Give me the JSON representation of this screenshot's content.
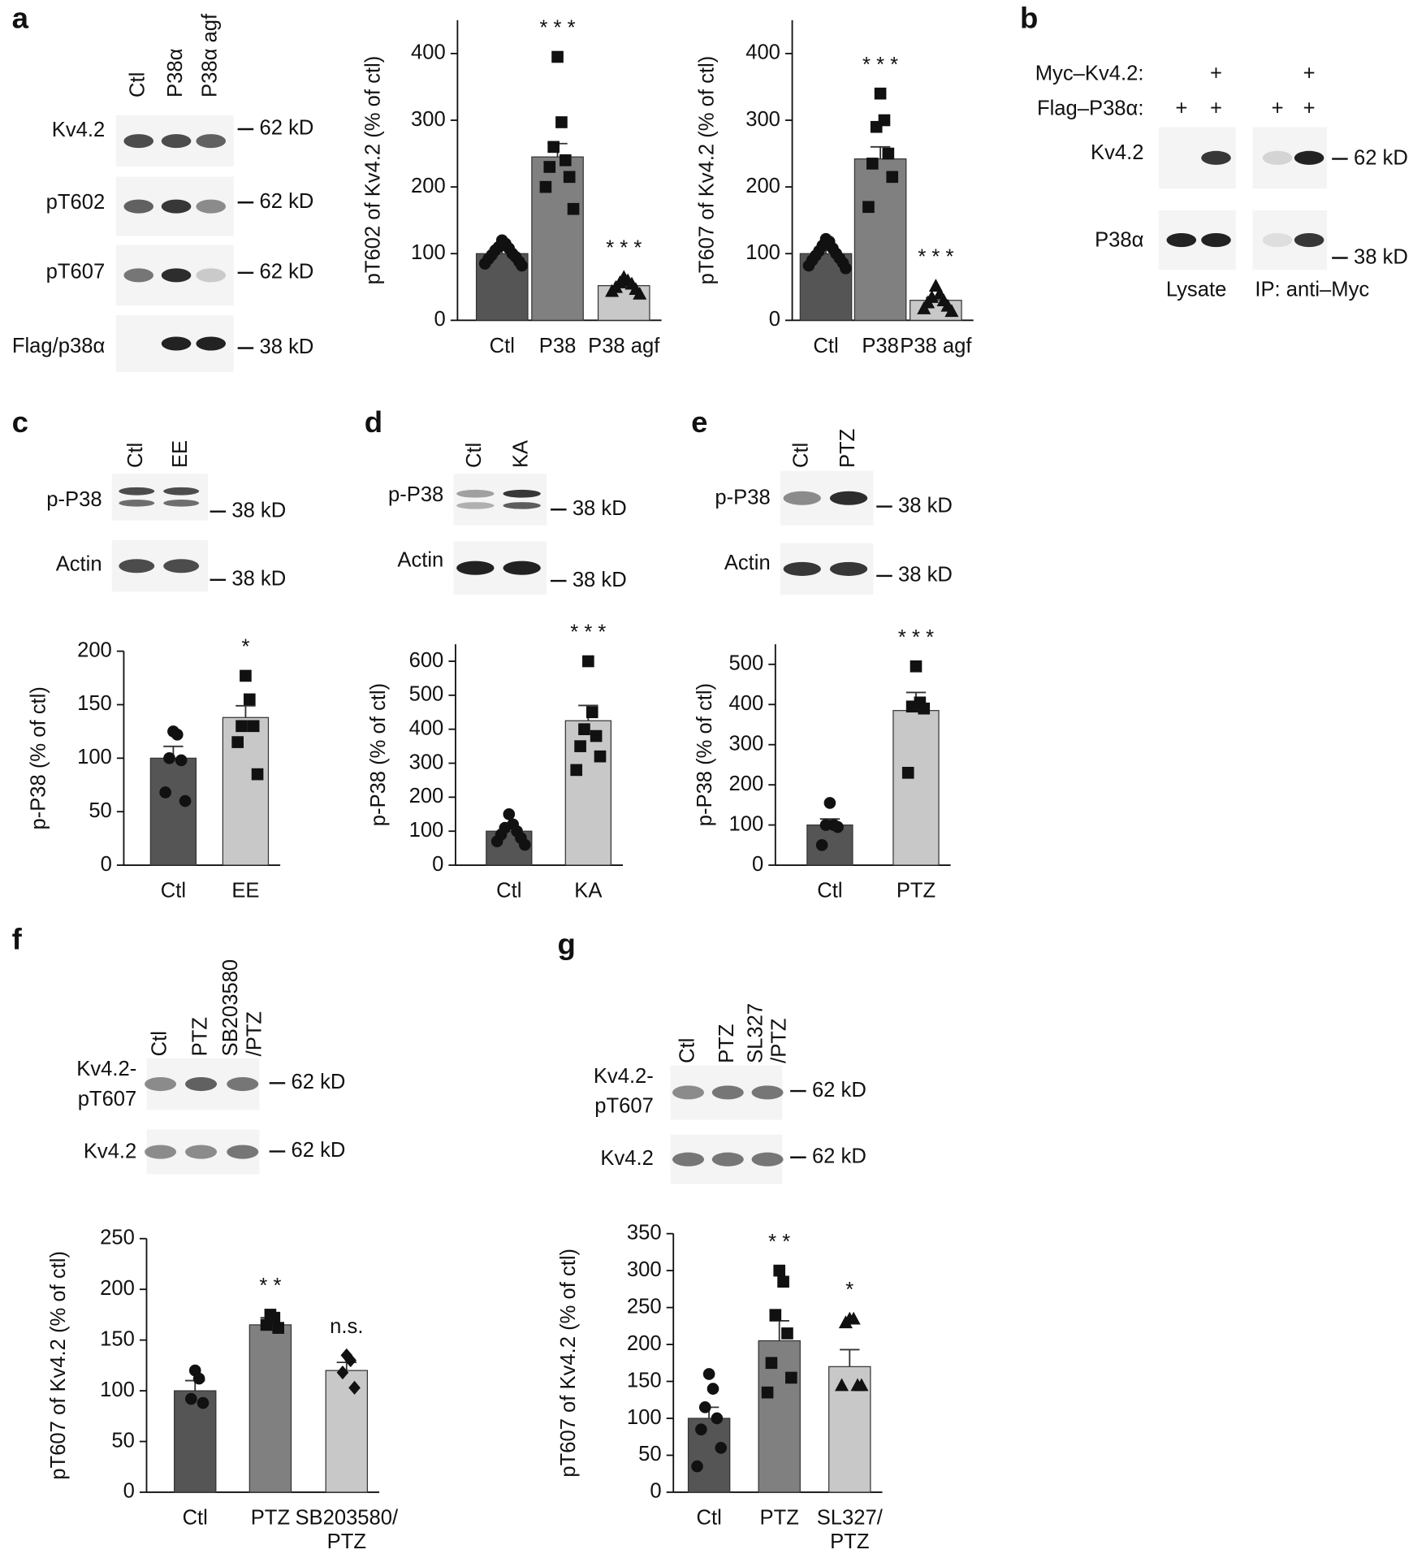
{
  "panel_labels": [
    "a",
    "b",
    "c",
    "d",
    "e",
    "f",
    "g"
  ],
  "blots": [
    {
      "lanes": [
        [
          "Ctl"
        ],
        [
          "P38α"
        ],
        [
          "P38α agf"
        ]
      ],
      "rows": [
        [
          "Kv4.2"
        ],
        [
          "pT602"
        ],
        [
          "pT607"
        ],
        [
          "Flag/p38α"
        ]
      ],
      "markers": [
        "62 kD",
        "62 kD",
        "62 kD",
        "38 kD"
      ]
    },
    {
      "conditions": [
        {
          "label": "Myc–Kv4.2:",
          "marks": [
            null,
            "+",
            null,
            "+"
          ]
        },
        {
          "label": "Flag–P38α:",
          "marks": [
            "+",
            "+",
            "+",
            "+"
          ]
        }
      ],
      "rows": [
        [
          "Kv4.2"
        ],
        [
          "P38α"
        ]
      ],
      "markers": [
        "62 kD",
        "38 kD"
      ],
      "groups": [
        "Lysate",
        "IP: anti–Myc"
      ]
    },
    {
      "lanes": [
        [
          "Ctl"
        ],
        [
          "EE"
        ]
      ],
      "rows": [
        [
          "p-P38"
        ],
        [
          "Actin"
        ]
      ],
      "markers": [
        "38 kD",
        "38 kD"
      ]
    },
    {
      "lanes": [
        [
          "Ctl"
        ],
        [
          "KA"
        ]
      ],
      "rows": [
        [
          "p-P38"
        ],
        [
          "Actin"
        ]
      ],
      "markers": [
        "38 kD",
        "38 kD"
      ]
    },
    {
      "lanes": [
        [
          "Ctl"
        ],
        [
          "PTZ"
        ]
      ],
      "rows": [
        [
          "p-P38"
        ],
        [
          "Actin"
        ]
      ],
      "markers": [
        "38 kD",
        "38 kD"
      ]
    },
    {
      "lanes": [
        [
          "Ctl"
        ],
        [
          "PTZ"
        ],
        [
          "SB203580",
          "/PTZ"
        ]
      ],
      "rows": [
        [
          "Kv4.2-",
          "pT607"
        ],
        [
          "Kv4.2"
        ]
      ],
      "markers": [
        "62 kD",
        "62 kD"
      ]
    },
    {
      "lanes": [
        [
          "Ctl"
        ],
        [
          "PTZ"
        ],
        [
          "SL327",
          "/PTZ"
        ]
      ],
      "rows": [
        [
          "Kv4.2-",
          "pT607"
        ],
        [
          "Kv4.2"
        ]
      ],
      "markers": [
        "62 kD",
        "62 kD"
      ]
    }
  ],
  "chart_data": [
    {
      "type": "bar",
      "ylabel": "pT602 of Kv4.2 (% of ctl)",
      "categories": [
        [
          "Ctl"
        ],
        [
          "P38"
        ],
        [
          "P38 agf"
        ]
      ],
      "values": [
        100,
        245,
        52
      ],
      "errors": [
        5,
        20,
        4
      ],
      "colors": [
        "#555555",
        "#808080",
        "#c8c8c8"
      ],
      "markers": [
        "circle",
        "square",
        "triangle"
      ],
      "points": [
        [
          120,
          115,
          110,
          108,
          105,
          100,
          98,
          95,
          92,
          88,
          85,
          82
        ],
        [
          395,
          297,
          260,
          240,
          230,
          215,
          200,
          167
        ],
        [
          65,
          60,
          57,
          55,
          50,
          47,
          44,
          40
        ]
      ],
      "annotations": [
        null,
        "* * *",
        "* * *"
      ],
      "ylim": [
        0,
        450
      ],
      "yticks": [
        0,
        100,
        200,
        300,
        400
      ]
    },
    {
      "type": "bar",
      "ylabel": "pT607 of Kv4.2 (% of ctl)",
      "categories": [
        [
          "Ctl"
        ],
        [
          "P38"
        ],
        [
          "P38 agf"
        ]
      ],
      "values": [
        100,
        242,
        30
      ],
      "errors": [
        5,
        18,
        4
      ],
      "colors": [
        "#555555",
        "#808080",
        "#c8c8c8"
      ],
      "markers": [
        "circle",
        "square",
        "triangle"
      ],
      "points": [
        [
          122,
          118,
          112,
          108,
          104,
          100,
          97,
          93,
          90,
          86,
          82,
          78
        ],
        [
          340,
          300,
          290,
          250,
          235,
          215,
          170
        ],
        [
          52,
          40,
          35,
          30,
          27,
          22,
          18,
          14
        ]
      ],
      "annotations": [
        null,
        "* * *",
        "* * *"
      ],
      "ylim": [
        0,
        450
      ],
      "yticks": [
        0,
        100,
        200,
        300,
        400
      ]
    },
    {
      "type": "bar",
      "ylabel": "p-P38 (% of ctl)",
      "categories": [
        [
          "Ctl"
        ],
        [
          "EE"
        ]
      ],
      "values": [
        100,
        138
      ],
      "errors": [
        11,
        11
      ],
      "colors": [
        "#555555",
        "#c8c8c8"
      ],
      "markers": [
        "circle",
        "square"
      ],
      "points": [
        [
          125,
          122,
          100,
          98,
          68,
          60
        ],
        [
          177,
          155,
          130,
          130,
          115,
          85
        ]
      ],
      "annotations": [
        null,
        "*"
      ],
      "ylim": [
        0,
        200
      ],
      "yticks": [
        0,
        50,
        100,
        150,
        200
      ]
    },
    {
      "type": "bar",
      "ylabel": "p-P38 (% of ctl)",
      "categories": [
        [
          "Ctl"
        ],
        [
          "KA"
        ]
      ],
      "values": [
        100,
        425
      ],
      "errors": [
        12,
        45
      ],
      "colors": [
        "#555555",
        "#c8c8c8"
      ],
      "markers": [
        "circle",
        "square"
      ],
      "points": [
        [
          150,
          120,
          110,
          100,
          90,
          80,
          70,
          60
        ],
        [
          600,
          450,
          400,
          380,
          350,
          320,
          280
        ]
      ],
      "annotations": [
        null,
        "* * *"
      ],
      "ylim": [
        0,
        650
      ],
      "yticks": [
        0,
        100,
        200,
        300,
        400,
        500,
        600
      ]
    },
    {
      "type": "bar",
      "ylabel": "p-P38 (% of ctl)",
      "categories": [
        [
          "Ctl"
        ],
        [
          "PTZ"
        ]
      ],
      "values": [
        100,
        385
      ],
      "errors": [
        15,
        45
      ],
      "colors": [
        "#555555",
        "#c8c8c8"
      ],
      "markers": [
        "circle",
        "square"
      ],
      "points": [
        [
          155,
          100,
          100,
          95,
          50
        ],
        [
          495,
          405,
          395,
          390,
          230
        ]
      ],
      "annotations": [
        null,
        "* * *"
      ],
      "ylim": [
        0,
        550
      ],
      "yticks": [
        0,
        100,
        200,
        300,
        400,
        500
      ]
    },
    {
      "type": "bar",
      "ylabel": "pT607 of Kv4.2 (% of ctl)",
      "categories": [
        [
          "Ctl"
        ],
        [
          "PTZ"
        ],
        [
          "SB203580/",
          "PTZ"
        ]
      ],
      "values": [
        100,
        165,
        120
      ],
      "errors": [
        10,
        7,
        8
      ],
      "colors": [
        "#555555",
        "#808080",
        "#c8c8c8"
      ],
      "markers": [
        "circle",
        "square",
        "diamond"
      ],
      "points": [
        [
          120,
          112,
          92,
          88
        ],
        [
          175,
          172,
          165,
          162
        ],
        [
          135,
          130,
          118,
          103
        ]
      ],
      "annotations": [
        null,
        "* *",
        "n.s."
      ],
      "ylim": [
        0,
        250
      ],
      "yticks": [
        0,
        50,
        100,
        150,
        200,
        250
      ]
    },
    {
      "type": "bar",
      "ylabel": "pT607 of Kv4.2 (% of ctl)",
      "categories": [
        [
          "Ctl"
        ],
        [
          "PTZ"
        ],
        [
          "SL327/",
          "PTZ"
        ]
      ],
      "values": [
        100,
        205,
        170
      ],
      "errors": [
        15,
        27,
        23
      ],
      "colors": [
        "#555555",
        "#808080",
        "#c8c8c8"
      ],
      "markers": [
        "circle",
        "square",
        "triangle"
      ],
      "points": [
        [
          160,
          140,
          115,
          100,
          85,
          60,
          35
        ],
        [
          300,
          285,
          240,
          215,
          175,
          155,
          135
        ],
        [
          235,
          235,
          230,
          145,
          145,
          145
        ]
      ],
      "annotations": [
        null,
        "* *",
        "*"
      ],
      "ylim": [
        0,
        350
      ],
      "yticks": [
        0,
        50,
        100,
        150,
        200,
        250,
        300,
        350
      ]
    }
  ]
}
